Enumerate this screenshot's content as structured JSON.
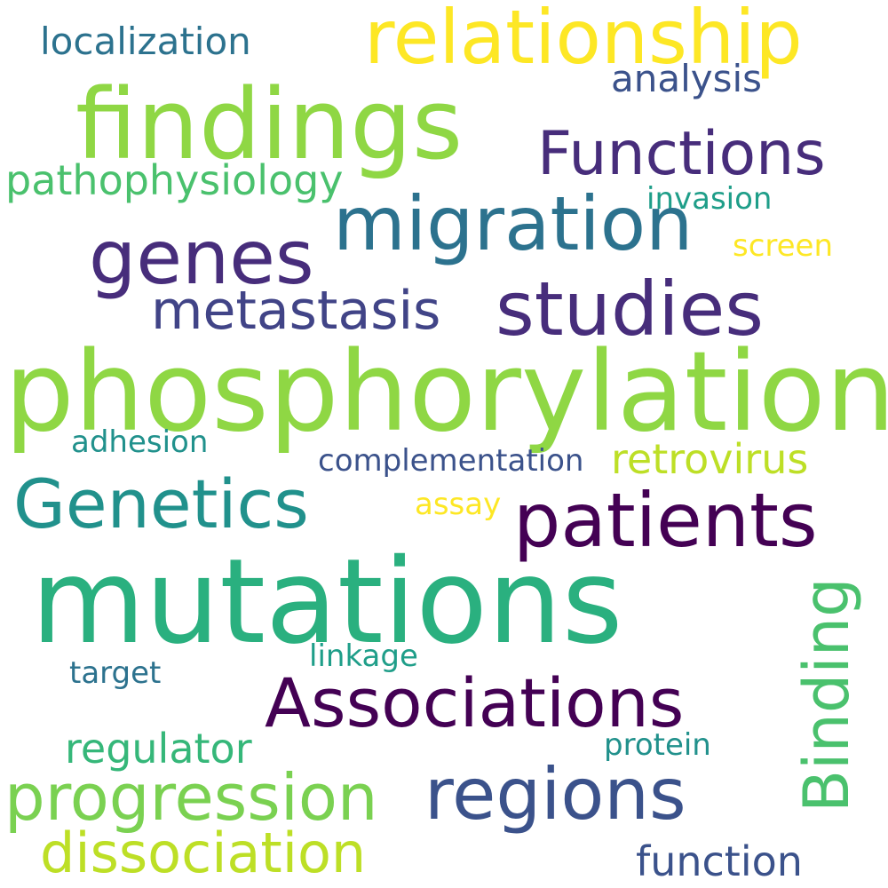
{
  "words": [
    {
      "text": "relationship",
      "color": "#fde725"
    },
    {
      "text": "localization",
      "color": "#2c728e"
    },
    {
      "text": "findings",
      "color": "#8fd744"
    },
    {
      "text": "analysis",
      "color": "#3b528b"
    },
    {
      "text": "Functions",
      "color": "#472d7b"
    },
    {
      "text": "pathophysiology",
      "color": "#4ac16d"
    },
    {
      "text": "invasion",
      "color": "#1f9e89"
    },
    {
      "text": "migration",
      "color": "#2c728e"
    },
    {
      "text": "genes",
      "color": "#472d7b"
    },
    {
      "text": "screen",
      "color": "#fde725"
    },
    {
      "text": "metastasis",
      "color": "#414487"
    },
    {
      "text": "studies",
      "color": "#472d7b"
    },
    {
      "text": "phosphorylation",
      "color": "#8fd744"
    },
    {
      "text": "adhesion",
      "color": "#21918c"
    },
    {
      "text": "complementation",
      "color": "#3b528b"
    },
    {
      "text": "retrovirus",
      "color": "#bddf26"
    },
    {
      "text": "Genetics",
      "color": "#21918c"
    },
    {
      "text": "assay",
      "color": "#fde725"
    },
    {
      "text": "patients",
      "color": "#440154"
    },
    {
      "text": "mutations",
      "color": "#2ab07f"
    },
    {
      "text": "Binding",
      "color": "#4ac16d"
    },
    {
      "text": "linkage",
      "color": "#1f9e89"
    },
    {
      "text": "target",
      "color": "#2c728e"
    },
    {
      "text": "Associations",
      "color": "#440154"
    },
    {
      "text": "regulator",
      "color": "#35b779"
    },
    {
      "text": "protein",
      "color": "#21918c"
    },
    {
      "text": "progression",
      "color": "#7ad151"
    },
    {
      "text": "regions",
      "color": "#3b528b"
    },
    {
      "text": "dissociation",
      "color": "#bddf26"
    },
    {
      "text": "function",
      "color": "#3b528b"
    }
  ]
}
